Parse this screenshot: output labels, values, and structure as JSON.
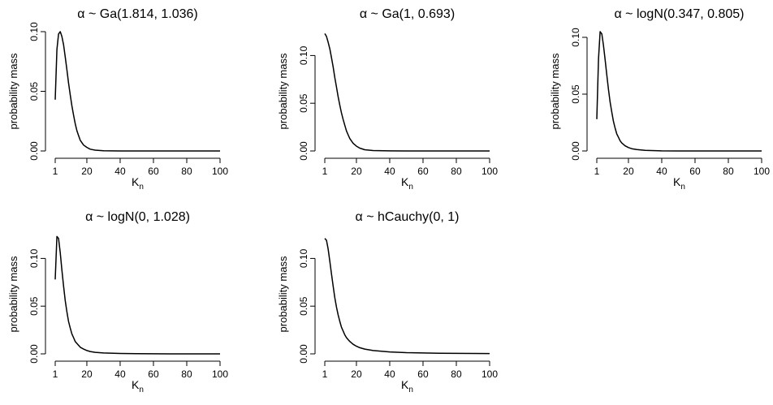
{
  "figure": {
    "ylabel": "probability mass",
    "xlabel": "K",
    "xlabel_sub": "n"
  },
  "chart_data": [
    {
      "type": "line",
      "title": "α ~ Ga(1.814, 1.036)",
      "xlabel": "K_n",
      "ylabel": "probability mass",
      "xlim": [
        1,
        100
      ],
      "ylim": [
        0,
        0.1
      ],
      "xticks": [
        1,
        20,
        40,
        60,
        80,
        100
      ],
      "yticks": [
        0.0,
        0.05,
        0.1
      ],
      "ytick_labels": [
        "0.00",
        "0.05",
        "0.10"
      ],
      "x": [
        1,
        2,
        3,
        4,
        5,
        6,
        7,
        8,
        9,
        10,
        11,
        12,
        13,
        14,
        15,
        16,
        18,
        20,
        22,
        25,
        30,
        40,
        50,
        60,
        70,
        80,
        90,
        100
      ],
      "y": [
        0.043,
        0.085,
        0.098,
        0.1,
        0.096,
        0.089,
        0.079,
        0.068,
        0.057,
        0.047,
        0.038,
        0.03,
        0.023,
        0.017,
        0.013,
        0.009,
        0.005,
        0.003,
        0.0015,
        0.0007,
        0.0002,
        0.0,
        0.0,
        0.0,
        0.0,
        0.0,
        0.0,
        0.0
      ]
    },
    {
      "type": "line",
      "title": "α ~ Ga(1, 0.693)",
      "xlabel": "K_n",
      "ylabel": "probability mass",
      "xlim": [
        1,
        100
      ],
      "ylim": [
        0,
        0.125
      ],
      "xticks": [
        1,
        20,
        40,
        60,
        80,
        100
      ],
      "yticks": [
        0.0,
        0.05,
        0.1
      ],
      "ytick_labels": [
        "0.00",
        "0.05",
        "0.10"
      ],
      "x": [
        1,
        2,
        3,
        4,
        5,
        6,
        7,
        8,
        9,
        10,
        11,
        12,
        13,
        14,
        15,
        16,
        18,
        20,
        22,
        25,
        30,
        40,
        50,
        60,
        70,
        80,
        90,
        100
      ],
      "y": [
        0.123,
        0.12,
        0.114,
        0.107,
        0.098,
        0.088,
        0.077,
        0.067,
        0.057,
        0.048,
        0.04,
        0.033,
        0.027,
        0.021,
        0.017,
        0.013,
        0.008,
        0.005,
        0.003,
        0.0013,
        0.0004,
        0.0001,
        0.0,
        0.0,
        0.0,
        0.0,
        0.0,
        0.0
      ]
    },
    {
      "type": "line",
      "title": "α ~ logN(0.347, 0.805)",
      "xlabel": "K_n",
      "ylabel": "probability mass",
      "xlim": [
        1,
        100
      ],
      "ylim": [
        0,
        0.105
      ],
      "xticks": [
        1,
        20,
        40,
        60,
        80,
        100
      ],
      "yticks": [
        0.0,
        0.05,
        0.1
      ],
      "ytick_labels": [
        "0.00",
        "0.05",
        "0.10"
      ],
      "x": [
        1,
        2,
        3,
        4,
        5,
        6,
        7,
        8,
        9,
        10,
        11,
        12,
        13,
        14,
        15,
        16,
        18,
        20,
        22,
        25,
        30,
        40,
        50,
        60,
        70,
        80,
        90,
        100
      ],
      "y": [
        0.028,
        0.081,
        0.105,
        0.103,
        0.093,
        0.08,
        0.067,
        0.054,
        0.043,
        0.034,
        0.026,
        0.02,
        0.015,
        0.012,
        0.009,
        0.007,
        0.0045,
        0.003,
        0.002,
        0.0012,
        0.0005,
        0.0001,
        0.0,
        0.0,
        0.0,
        0.0,
        0.0,
        0.0
      ]
    },
    {
      "type": "line",
      "title": "α ~ logN(0, 1.028)",
      "xlabel": "K_n",
      "ylabel": "probability mass",
      "xlim": [
        1,
        100
      ],
      "ylim": [
        0,
        0.125
      ],
      "xticks": [
        1,
        20,
        40,
        60,
        80,
        100
      ],
      "yticks": [
        0.0,
        0.05,
        0.1
      ],
      "ytick_labels": [
        "0.00",
        "0.05",
        "0.10"
      ],
      "x": [
        1,
        2,
        3,
        4,
        5,
        6,
        7,
        8,
        9,
        10,
        11,
        12,
        13,
        14,
        15,
        16,
        18,
        20,
        22,
        25,
        30,
        40,
        50,
        60,
        70,
        80,
        90,
        100
      ],
      "y": [
        0.078,
        0.123,
        0.121,
        0.106,
        0.088,
        0.071,
        0.056,
        0.044,
        0.034,
        0.027,
        0.021,
        0.017,
        0.013,
        0.011,
        0.009,
        0.007,
        0.005,
        0.0035,
        0.0025,
        0.0016,
        0.0009,
        0.0004,
        0.0002,
        0.0001,
        0.0,
        0.0,
        0.0,
        0.0
      ]
    },
    {
      "type": "line",
      "title": "α ~ hCauchy(0, 1)",
      "xlabel": "K_n",
      "ylabel": "probability mass",
      "xlim": [
        1,
        100
      ],
      "ylim": [
        0,
        0.125
      ],
      "xticks": [
        1,
        20,
        40,
        60,
        80,
        100
      ],
      "yticks": [
        0.0,
        0.05,
        0.1
      ],
      "ytick_labels": [
        "0.00",
        "0.05",
        "0.10"
      ],
      "x": [
        1,
        2,
        3,
        4,
        5,
        6,
        7,
        8,
        9,
        10,
        11,
        12,
        13,
        14,
        15,
        16,
        18,
        20,
        22,
        25,
        30,
        40,
        50,
        60,
        70,
        80,
        90,
        100
      ],
      "y": [
        0.121,
        0.119,
        0.11,
        0.097,
        0.084,
        0.071,
        0.059,
        0.049,
        0.041,
        0.034,
        0.028,
        0.024,
        0.02,
        0.017,
        0.015,
        0.013,
        0.01,
        0.008,
        0.0065,
        0.005,
        0.0035,
        0.002,
        0.0013,
        0.0009,
        0.0007,
        0.0005,
        0.0004,
        0.0003
      ]
    }
  ]
}
